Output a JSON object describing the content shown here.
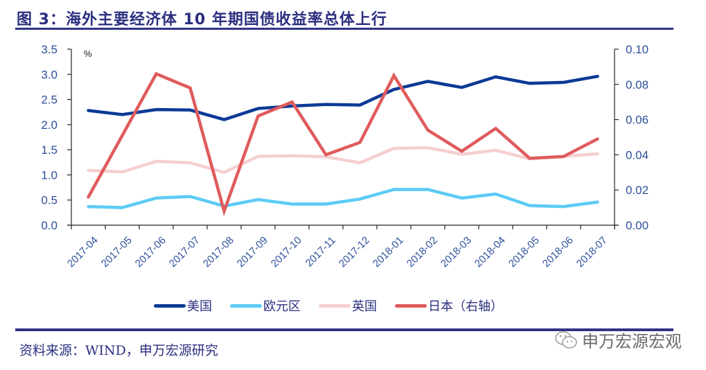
{
  "header": {
    "title": "图 3：海外主要经济体 10 年期国债收益率总体上行"
  },
  "footer": {
    "source": "资料来源：WIND，申万宏源研究",
    "watermark": "申万宏源宏观",
    "watermark_icon": "wechat-icon"
  },
  "chart_data": {
    "type": "line",
    "title": "海外主要经济体 10 年期国债收益率总体上行",
    "ylabel": "%",
    "ylabel_right": "",
    "ylim": [
      0,
      3.5
    ],
    "ylim_right": [
      0,
      0.1
    ],
    "yticks": [
      "0.0",
      "0.5",
      "1.0",
      "1.5",
      "2.0",
      "2.5",
      "3.0",
      "3.5"
    ],
    "yticks_right": [
      "0.00",
      "0.02",
      "0.04",
      "0.06",
      "0.08",
      "0.10"
    ],
    "grid": false,
    "legend_position": "bottom",
    "categories": [
      "2017-04",
      "2017-05",
      "2017-06",
      "2017-07",
      "2017-08",
      "2017-09",
      "2017-10",
      "2017-11",
      "2017-12",
      "2018-01",
      "2018-02",
      "2018-03",
      "2018-04",
      "2018-05",
      "2018-06",
      "2018-07"
    ],
    "series": [
      {
        "name": "美国",
        "axis": "left",
        "color": "#0b3a96",
        "values": [
          2.28,
          2.2,
          2.3,
          2.29,
          2.1,
          2.32,
          2.37,
          2.4,
          2.39,
          2.7,
          2.86,
          2.74,
          2.95,
          2.82,
          2.84,
          2.96
        ]
      },
      {
        "name": "欧元区",
        "axis": "left",
        "color": "#5ccbf5",
        "values": [
          0.37,
          0.35,
          0.54,
          0.57,
          0.38,
          0.51,
          0.42,
          0.42,
          0.52,
          0.71,
          0.71,
          0.54,
          0.62,
          0.39,
          0.37,
          0.46
        ]
      },
      {
        "name": "英国",
        "axis": "left",
        "color": "#f6cfd0",
        "values": [
          1.09,
          1.06,
          1.27,
          1.24,
          1.05,
          1.37,
          1.38,
          1.36,
          1.24,
          1.53,
          1.54,
          1.41,
          1.49,
          1.32,
          1.37,
          1.42
        ]
      },
      {
        "name": "日本（右轴）",
        "axis": "right",
        "color": "#e05b5c",
        "values": [
          0.016,
          0.051,
          0.086,
          0.078,
          0.008,
          0.062,
          0.07,
          0.04,
          0.047,
          0.085,
          0.054,
          0.042,
          0.055,
          0.038,
          0.039,
          0.049
        ]
      }
    ]
  }
}
